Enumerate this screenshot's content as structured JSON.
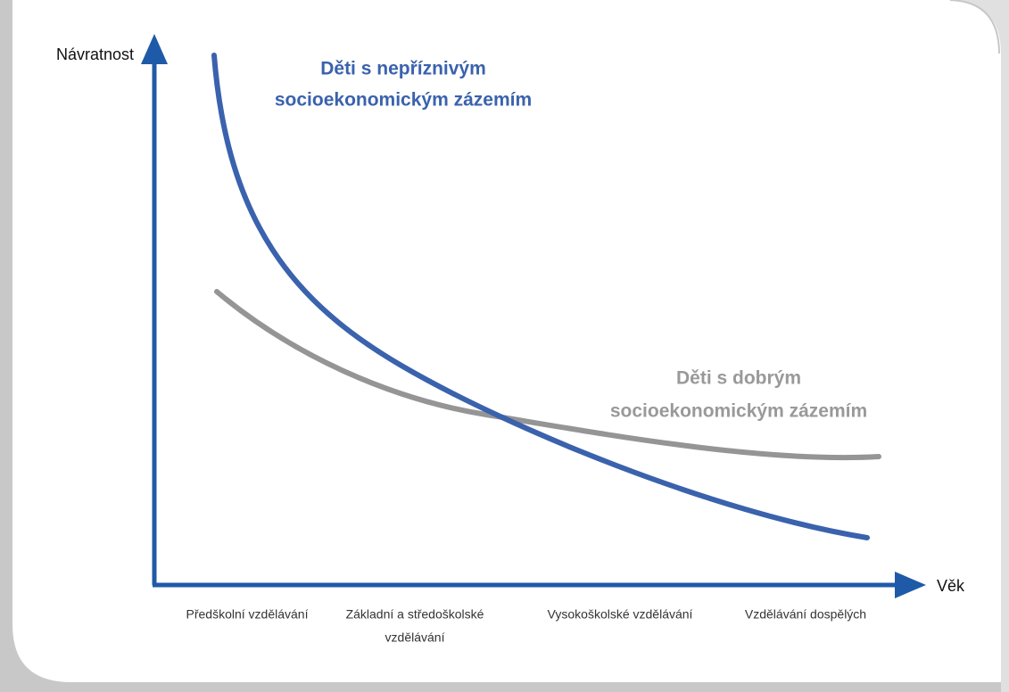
{
  "axes": {
    "y_label": "Návratnost",
    "x_label": "Věk"
  },
  "curves": [
    {
      "label": [
        "Děti s nepříznivým",
        "socioekonomickým zázemím"
      ]
    },
    {
      "label": [
        "Děti s dobrým",
        "socioekonomickým zázemím"
      ]
    }
  ],
  "categories": [
    [
      "Předškolní vzdělávání"
    ],
    [
      "Základní a středoškolské",
      "vzdělávání"
    ],
    [
      "Vysokoškolské vzdělávání"
    ],
    [
      "Vzdělávání dospělých"
    ]
  ]
}
